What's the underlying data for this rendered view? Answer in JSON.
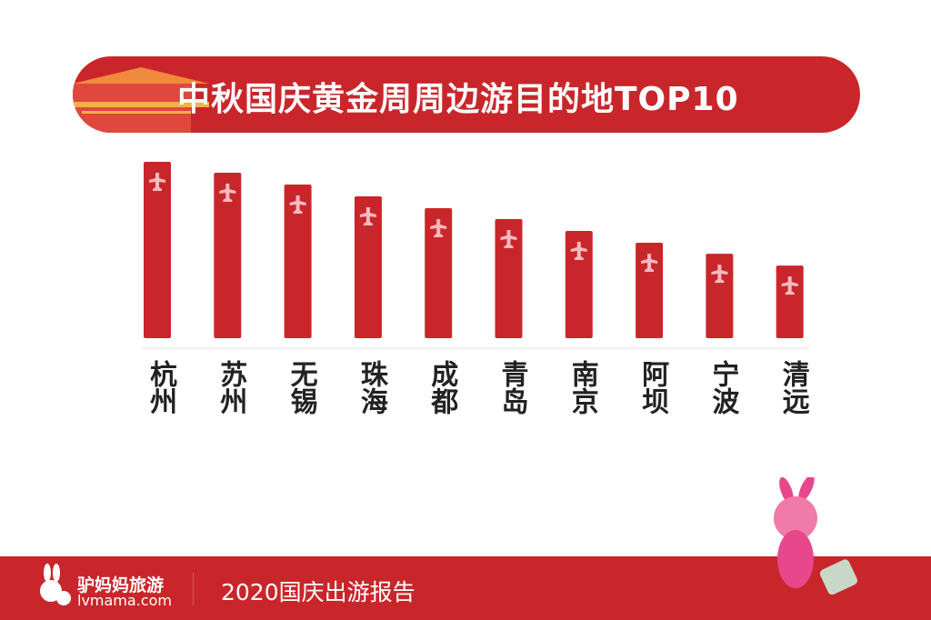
{
  "title": "中秋国庆黄金周周边游目的地TOP10",
  "chart_data": {
    "type": "bar",
    "title": "中秋国庆黄金周周边游目的地TOP10",
    "categories": [
      "杭州",
      "苏州",
      "无锡",
      "珠海",
      "成都",
      "青岛",
      "南京",
      "阿坝",
      "宁波",
      "清远"
    ],
    "values": [
      100,
      93.8,
      87.1,
      80.4,
      73.7,
      67.5,
      60.8,
      54.1,
      47.9,
      41.2
    ],
    "value_note": "relative ranking (no axis shown)",
    "xlabel": "",
    "ylabel": "",
    "ylim": [
      0,
      100
    ],
    "grid": false,
    "bar_color": "#c9262b",
    "icon": "airplane-icon"
  },
  "footer": {
    "brand": "驴妈妈旅游",
    "site": "lvmama.com",
    "report": "2020国庆出游报告"
  },
  "colors": {
    "accent": "#c9262b",
    "icon": "#f6b9c0"
  }
}
